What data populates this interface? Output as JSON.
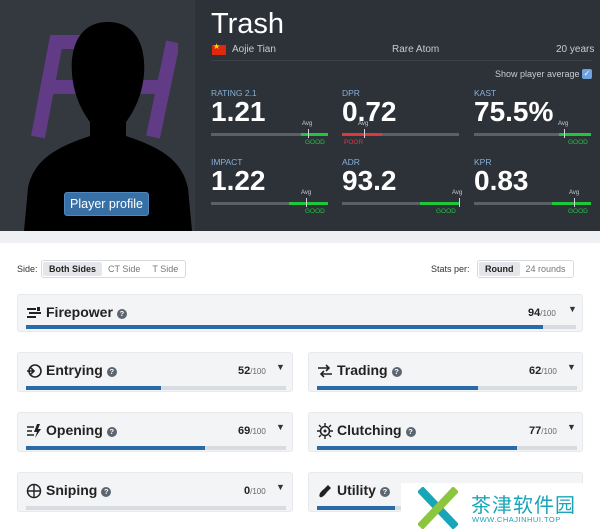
{
  "player": {
    "nickname": "Trash",
    "real_name": "Aojie Tian",
    "team": "Rare Atom",
    "age": "20 years",
    "country_flag_colors": [
      "#de2910",
      "#ffde00"
    ],
    "profile_button": "Player profile",
    "show_average_label": "Show player average",
    "show_average_checked": true
  },
  "stats": [
    {
      "label": "RATING 2.1",
      "value": "1.21",
      "verdict": "GOOD",
      "avg_label": "Avg"
    },
    {
      "label": "DPR",
      "value": "0.72",
      "verdict": "POOR",
      "avg_label": "Avg"
    },
    {
      "label": "KAST",
      "value": "75.5%",
      "verdict": "GOOD",
      "avg_label": "Avg"
    },
    {
      "label": "IMPACT",
      "value": "1.22",
      "verdict": "GOOD",
      "avg_label": "Avg"
    },
    {
      "label": "ADR",
      "value": "93.2",
      "verdict": "GOOD",
      "avg_label": "Avg"
    },
    {
      "label": "KPR",
      "value": "0.83",
      "verdict": "GOOD",
      "avg_label": "Avg"
    }
  ],
  "filters": {
    "side_label": "Side:",
    "side_options": [
      "Both Sides",
      "CT Side",
      "T Side"
    ],
    "side_selected": "Both Sides",
    "stats_per_label": "Stats per:",
    "per_options": [
      "Round",
      "24 rounds"
    ],
    "per_selected": "Round"
  },
  "categories": [
    {
      "name": "Firepower",
      "score": "94",
      "max": "/100",
      "fraction": 0.94
    },
    {
      "name": "Entrying",
      "score": "52",
      "max": "/100",
      "fraction": 0.52
    },
    {
      "name": "Trading",
      "score": "62",
      "max": "/100",
      "fraction": 0.62
    },
    {
      "name": "Opening",
      "score": "69",
      "max": "/100",
      "fraction": 0.69
    },
    {
      "name": "Clutching",
      "score": "77",
      "max": "/100",
      "fraction": 0.77
    },
    {
      "name": "Sniping",
      "score": "0",
      "max": "/100",
      "fraction": 0.0
    },
    {
      "name": "Utility",
      "score": "",
      "max": "",
      "fraction": 0.3
    }
  ],
  "help_glyph": "?",
  "watermark": {
    "title": "茶津软件园",
    "url": "WWW.CHAJINHUI.TOP"
  },
  "colors": {
    "accent": "#2a6aa8",
    "good": "#1fc73b",
    "poor": "#e0363d",
    "header_bg": "#2d3138"
  }
}
